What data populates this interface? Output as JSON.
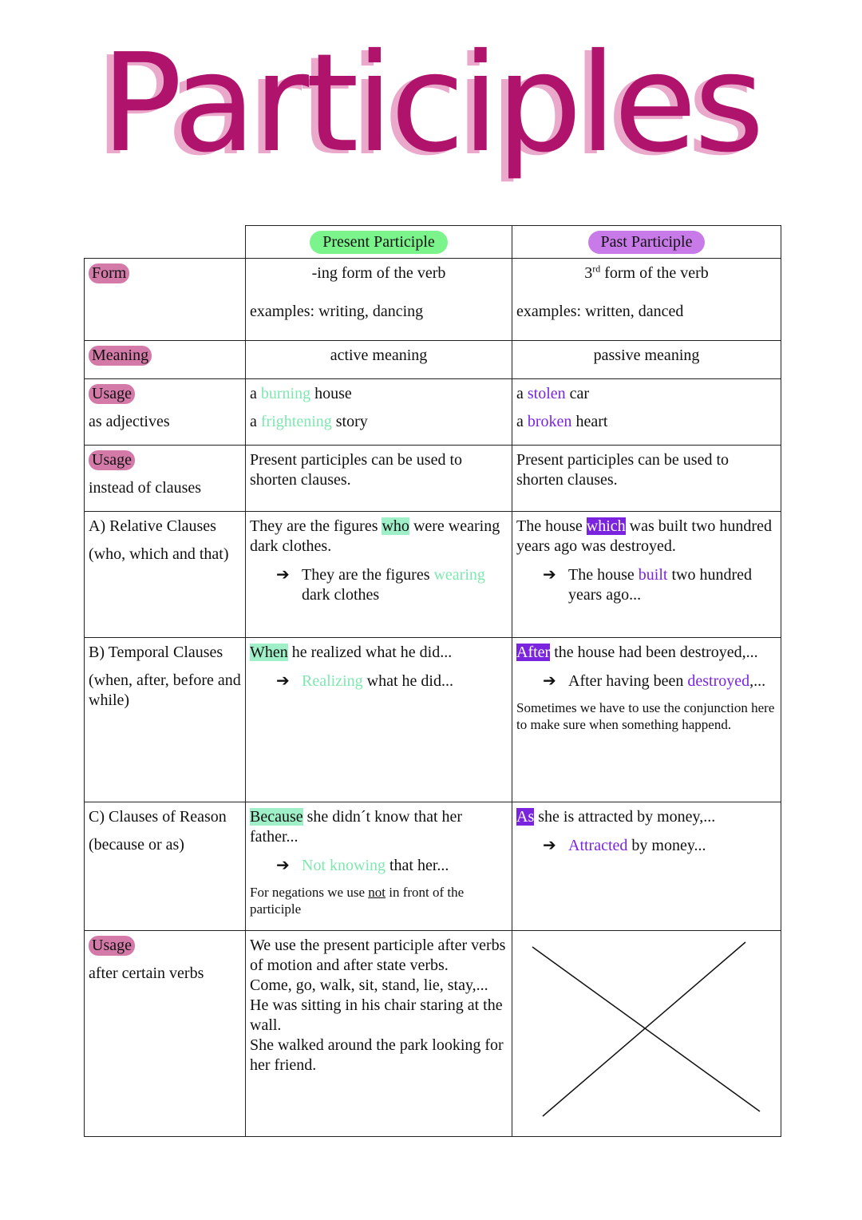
{
  "title": "Participles",
  "colors": {
    "title": "#b0136b",
    "title_shadow": "#eaa9cb",
    "present_pill": "#7cf48c",
    "past_pill": "#c77ae8",
    "row_tag": "#d47aa8",
    "green_text": "#7ee8b0",
    "purple_text": "#7a24e0",
    "green_highlight": "#9ff0c8",
    "purple_highlight": "#7a24e0"
  },
  "header": {
    "present": "Present Participle",
    "past": "Past Participle"
  },
  "rows": [
    {
      "label": [
        {
          "tag": "Form"
        }
      ],
      "present": [
        {
          "center": true,
          "segs": [
            {
              "t": "-ing form of the verb"
            }
          ]
        },
        {
          "gap": true,
          "segs": [
            {
              "t": "examples: writing, dancing"
            }
          ]
        }
      ],
      "past": [
        {
          "center": true,
          "segs": [
            {
              "t": "3"
            },
            {
              "t": "rd",
              "s": "sup"
            },
            {
              "t": " form of the verb"
            }
          ]
        },
        {
          "gap": true,
          "segs": [
            {
              "t": "examples: written, danced"
            }
          ]
        }
      ]
    },
    {
      "label": [
        {
          "tag": "Meaning"
        }
      ],
      "present": [
        {
          "center": true,
          "segs": [
            {
              "t": "active meaning"
            }
          ]
        }
      ],
      "past": [
        {
          "center": true,
          "segs": [
            {
              "t": "passive meaning"
            }
          ]
        }
      ]
    },
    {
      "label": [
        {
          "tag": "Usage"
        },
        {
          "text": "as  adjectives"
        }
      ],
      "present": [
        {
          "segs": [
            {
              "t": "a "
            },
            {
              "t": "burning",
              "s": "g"
            },
            {
              "t": " house"
            }
          ]
        },
        {
          "segs": [
            {
              "t": "a "
            },
            {
              "t": "frightening",
              "s": "g"
            },
            {
              "t": " story"
            }
          ]
        }
      ],
      "past": [
        {
          "segs": [
            {
              "t": "a "
            },
            {
              "t": "stolen",
              "s": "p"
            },
            {
              "t": " car"
            }
          ]
        },
        {
          "segs": [
            {
              "t": "a "
            },
            {
              "t": "broken",
              "s": "p"
            },
            {
              "t": " heart"
            }
          ]
        }
      ]
    },
    {
      "label": [
        {
          "tag": "Usage"
        },
        {
          "text": "instead of clauses"
        }
      ],
      "present": [
        {
          "segs": [
            {
              "t": "Present participles can be used to shorten clauses."
            }
          ]
        }
      ],
      "past": [
        {
          "segs": [
            {
              "t": "Present participles can be used to shorten clauses."
            }
          ]
        }
      ]
    },
    {
      "label": [
        {
          "text": "A) Relative Clauses"
        },
        {
          "text": "(who, which and that)"
        }
      ],
      "present": [
        {
          "segs": [
            {
              "t": "They are the figures "
            },
            {
              "t": "who",
              "s": "gh"
            },
            {
              "t": " were wearing dark clothes."
            }
          ]
        },
        {
          "arrow": true,
          "segs": [
            {
              "t": "They are the figures "
            },
            {
              "t": "wearing",
              "s": "g"
            },
            {
              "t": " dark clothes"
            }
          ]
        }
      ],
      "past": [
        {
          "segs": [
            {
              "t": "The house "
            },
            {
              "t": "which",
              "s": "ph"
            },
            {
              "t": " was built two hundred years ago was destroyed."
            }
          ]
        },
        {
          "arrow": true,
          "segs": [
            {
              "t": "The house "
            },
            {
              "t": "built",
              "s": "p"
            },
            {
              "t": " two hundred years ago..."
            }
          ]
        }
      ]
    },
    {
      "label": [
        {
          "text": "B) Temporal Clauses"
        },
        {
          "text": "(when, after, before and while)"
        }
      ],
      "present": [
        {
          "segs": [
            {
              "t": "When",
              "s": "gh"
            },
            {
              "t": " he realized what he did..."
            }
          ]
        },
        {
          "arrow": true,
          "segs": [
            {
              "t": "Realizing",
              "s": "g"
            },
            {
              "t": " what he did..."
            }
          ]
        }
      ],
      "past": [
        {
          "segs": [
            {
              "t": "After",
              "s": "ph"
            },
            {
              "t": " the house had been destroyed,..."
            }
          ]
        },
        {
          "arrow": true,
          "segs": [
            {
              "t": "After having been "
            },
            {
              "t": "destroyed",
              "s": "p"
            },
            {
              "t": ",..."
            }
          ]
        },
        {
          "small": true,
          "segs": [
            {
              "t": "Sometimes we have to use the conjunction here to make sure when something happend."
            }
          ]
        }
      ]
    },
    {
      "label": [
        {
          "text": "C) Clauses of Reason"
        },
        {
          "text": "(because or as)"
        }
      ],
      "present": [
        {
          "segs": [
            {
              "t": "Because",
              "s": "gh"
            },
            {
              "t": " she didn´t know that her father..."
            }
          ]
        },
        {
          "arrow": true,
          "segs": [
            {
              "t": "Not knowing",
              "s": "g"
            },
            {
              "t": " that her..."
            }
          ]
        },
        {
          "small": true,
          "segs": [
            {
              "t": "For negations we use "
            },
            {
              "t": "not",
              "s": "u"
            },
            {
              "t": " in front of the participle"
            }
          ]
        }
      ],
      "past": [
        {
          "segs": [
            {
              "t": "As",
              "s": "ph"
            },
            {
              "t": " she is attracted by money,..."
            }
          ]
        },
        {
          "arrow": true,
          "segs": [
            {
              "t": "Attracted",
              "s": "p"
            },
            {
              "t": " by money..."
            }
          ]
        }
      ]
    },
    {
      "label": [
        {
          "tag": "Usage"
        },
        {
          "text": "after certain verbs"
        }
      ],
      "present": [
        {
          "tight": true,
          "segs": [
            {
              "t": "We use the present participle after verbs of motion and after state verbs."
            }
          ]
        },
        {
          "tight": true,
          "segs": [
            {
              "t": "Come, go, walk, sit, stand, lie, stay,..."
            }
          ]
        },
        {
          "tight": true,
          "segs": [
            {
              "t": "He was sitting in his chair staring at the wall."
            }
          ]
        },
        {
          "tight": true,
          "segs": [
            {
              "t": "She walked around the park looking for her friend."
            }
          ]
        }
      ],
      "past": "cross"
    }
  ]
}
